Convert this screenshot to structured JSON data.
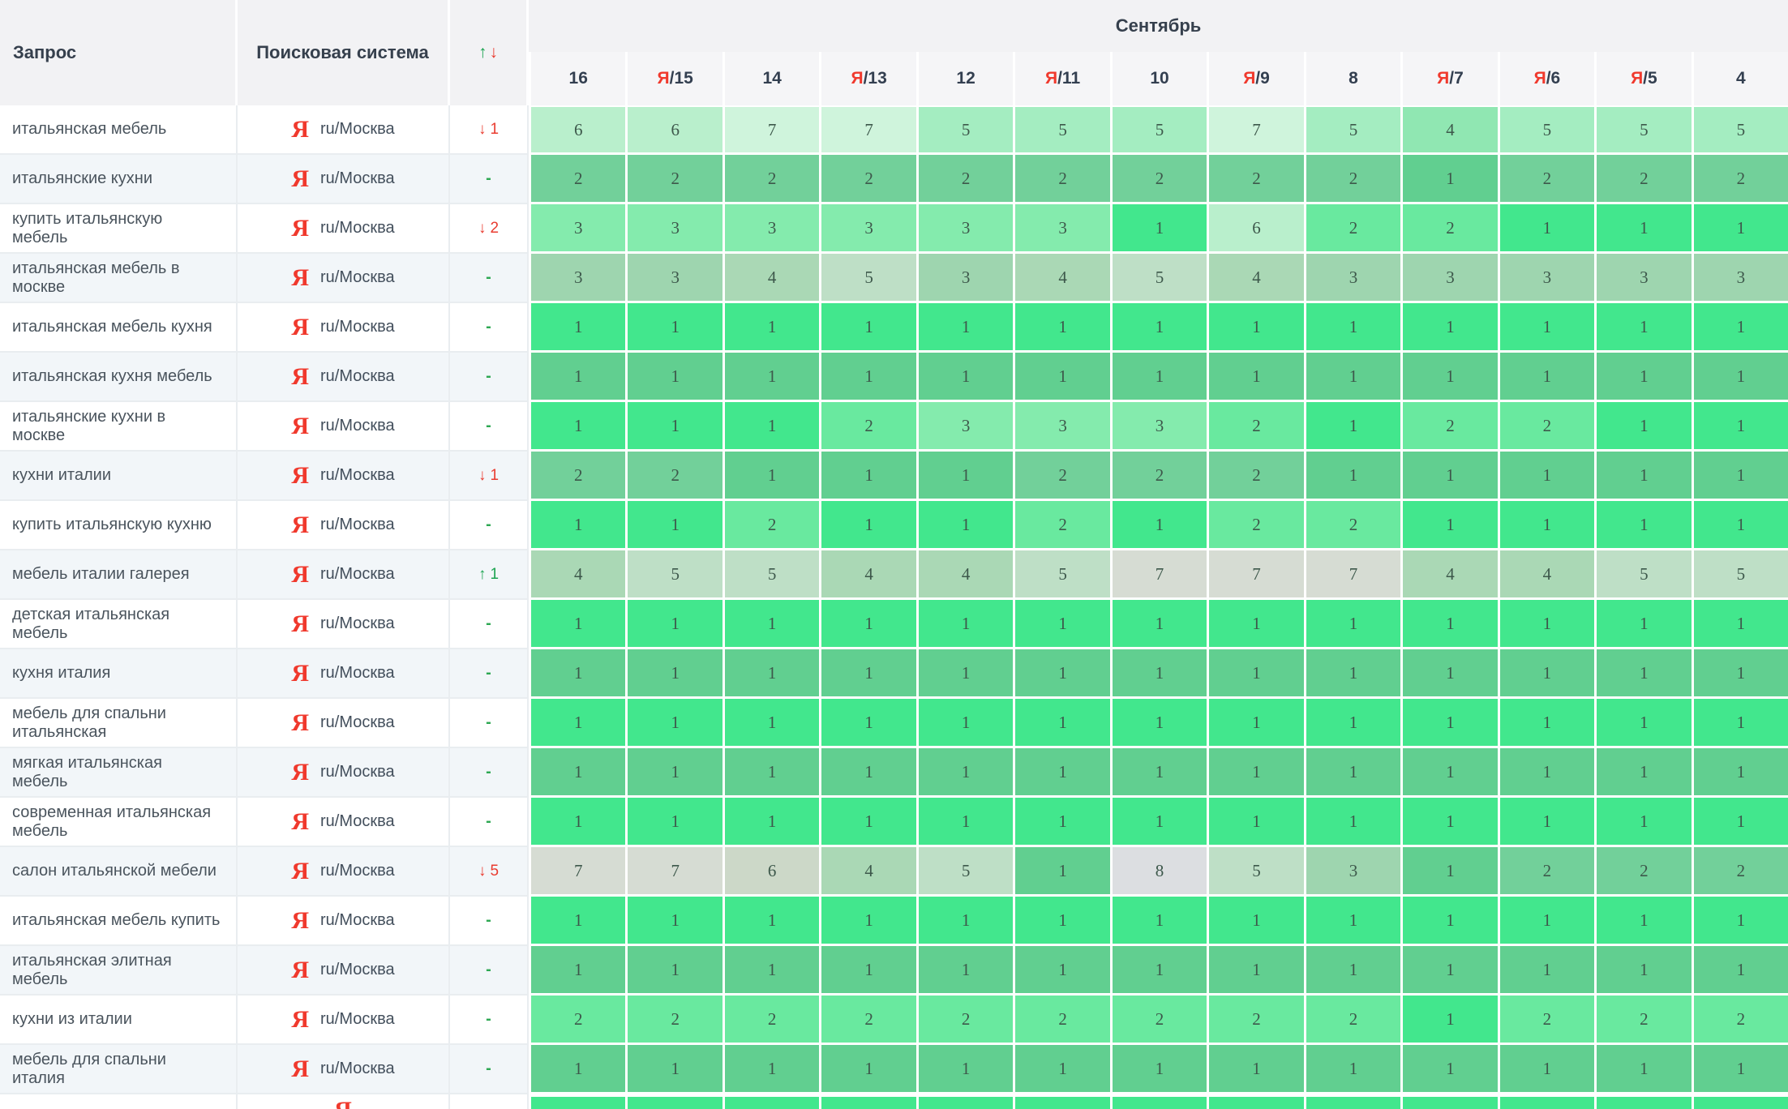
{
  "header": {
    "query_col": "Запрос",
    "engine_col": "Поисковая система",
    "change_up": "↑",
    "change_down": "↓",
    "month": "Сентябрь",
    "dates": [
      {
        "engine": "",
        "label": "16"
      },
      {
        "engine": "Я",
        "label": "/15"
      },
      {
        "engine": "",
        "label": "14"
      },
      {
        "engine": "Я",
        "label": "/13"
      },
      {
        "engine": "",
        "label": "12"
      },
      {
        "engine": "Я",
        "label": "/11"
      },
      {
        "engine": "",
        "label": "10"
      },
      {
        "engine": "Я",
        "label": "/9"
      },
      {
        "engine": "",
        "label": "8"
      },
      {
        "engine": "Я",
        "label": "/7"
      },
      {
        "engine": "Я",
        "label": "/6"
      },
      {
        "engine": "Я",
        "label": "/5"
      },
      {
        "engine": "",
        "label": "4"
      }
    ]
  },
  "engine": {
    "icon": "Я",
    "label": "ru/Москва"
  },
  "palette": {
    "v1": "#42e78d",
    "v2": "#69e99f",
    "v3": "#84ebad",
    "v4": "#90e7b2",
    "v5": "#a4edc1",
    "v6": "#b9efcc",
    "v7": "#cff4dc",
    "m1": "#61cf90",
    "m2": "#72d09a",
    "m3": "#9ed5af",
    "m4": "#aad8b5",
    "m5": "#bedfc6",
    "m6": "#ccd8c8",
    "m7": "#d6dcd3",
    "m8": "#dcdee1"
  },
  "change_colors": {
    "up": "#1ca351",
    "down": "#e93c30",
    "none": "#2ea853"
  },
  "rows": [
    {
      "query": "итальянская мебель",
      "change": {
        "dir": "down",
        "value": "1"
      },
      "values": [
        6,
        6,
        7,
        7,
        5,
        5,
        5,
        7,
        5,
        4,
        5,
        5,
        5
      ],
      "colors": [
        "v6",
        "v6",
        "v7",
        "v7",
        "v5",
        "v5",
        "v5",
        "v7",
        "v5",
        "v4",
        "v5",
        "v5",
        "v5"
      ]
    },
    {
      "query": "итальянские кухни",
      "change": {
        "dir": "none",
        "value": "-"
      },
      "values": [
        2,
        2,
        2,
        2,
        2,
        2,
        2,
        2,
        2,
        1,
        2,
        2,
        2
      ],
      "colors": [
        "m2",
        "m2",
        "m2",
        "m2",
        "m2",
        "m2",
        "m2",
        "m2",
        "m2",
        "m1",
        "m2",
        "m2",
        "m2"
      ]
    },
    {
      "query": "купить итальянскую мебель",
      "change": {
        "dir": "down",
        "value": "2"
      },
      "values": [
        3,
        3,
        3,
        3,
        3,
        3,
        1,
        6,
        2,
        2,
        1,
        1,
        1
      ],
      "colors": [
        "v3",
        "v3",
        "v3",
        "v3",
        "v3",
        "v3",
        "v1",
        "v6",
        "v2",
        "v2",
        "v1",
        "v1",
        "v1"
      ]
    },
    {
      "query": "итальянская мебель в москве",
      "change": {
        "dir": "none",
        "value": "-"
      },
      "values": [
        3,
        3,
        4,
        5,
        3,
        4,
        5,
        4,
        3,
        3,
        3,
        3,
        3
      ],
      "colors": [
        "m3",
        "m3",
        "m4",
        "m5",
        "m3",
        "m4",
        "m5",
        "m4",
        "m3",
        "m3",
        "m3",
        "m3",
        "m3"
      ]
    },
    {
      "query": "итальянская мебель кухня",
      "change": {
        "dir": "none",
        "value": "-"
      },
      "values": [
        1,
        1,
        1,
        1,
        1,
        1,
        1,
        1,
        1,
        1,
        1,
        1,
        1
      ],
      "colors": [
        "v1",
        "v1",
        "v1",
        "v1",
        "v1",
        "v1",
        "v1",
        "v1",
        "v1",
        "v1",
        "v1",
        "v1",
        "v1"
      ]
    },
    {
      "query": "итальянская кухня мебель",
      "change": {
        "dir": "none",
        "value": "-"
      },
      "values": [
        1,
        1,
        1,
        1,
        1,
        1,
        1,
        1,
        1,
        1,
        1,
        1,
        1
      ],
      "colors": [
        "m1",
        "m1",
        "m1",
        "m1",
        "m1",
        "m1",
        "m1",
        "m1",
        "m1",
        "m1",
        "m1",
        "m1",
        "m1"
      ]
    },
    {
      "query": "итальянские кухни в москве",
      "change": {
        "dir": "none",
        "value": "-"
      },
      "values": [
        1,
        1,
        1,
        2,
        3,
        3,
        3,
        2,
        1,
        2,
        2,
        1,
        1
      ],
      "colors": [
        "v1",
        "v1",
        "v1",
        "v2",
        "v3",
        "v3",
        "v3",
        "v2",
        "v1",
        "v2",
        "v2",
        "v1",
        "v1"
      ]
    },
    {
      "query": "кухни италии",
      "change": {
        "dir": "down",
        "value": "1"
      },
      "values": [
        2,
        2,
        1,
        1,
        1,
        2,
        2,
        2,
        1,
        1,
        1,
        1,
        1
      ],
      "colors": [
        "m2",
        "m2",
        "m1",
        "m1",
        "m1",
        "m2",
        "m2",
        "m2",
        "m1",
        "m1",
        "m1",
        "m1",
        "m1"
      ]
    },
    {
      "query": "купить итальянскую кухню",
      "change": {
        "dir": "none",
        "value": "-"
      },
      "values": [
        1,
        1,
        2,
        1,
        1,
        2,
        1,
        2,
        2,
        1,
        1,
        1,
        1
      ],
      "colors": [
        "v1",
        "v1",
        "v2",
        "v1",
        "v1",
        "v2",
        "v1",
        "v2",
        "v2",
        "v1",
        "v1",
        "v1",
        "v1"
      ]
    },
    {
      "query": "мебель италии галерея",
      "change": {
        "dir": "up",
        "value": "1"
      },
      "values": [
        4,
        5,
        5,
        4,
        4,
        5,
        7,
        7,
        7,
        4,
        4,
        5,
        5
      ],
      "colors": [
        "m4",
        "m5",
        "m5",
        "m4",
        "m4",
        "m5",
        "m7",
        "m7",
        "m7",
        "m4",
        "m4",
        "m5",
        "m5"
      ]
    },
    {
      "query": "детская итальянская мебель",
      "change": {
        "dir": "none",
        "value": "-"
      },
      "values": [
        1,
        1,
        1,
        1,
        1,
        1,
        1,
        1,
        1,
        1,
        1,
        1,
        1
      ],
      "colors": [
        "v1",
        "v1",
        "v1",
        "v1",
        "v1",
        "v1",
        "v1",
        "v1",
        "v1",
        "v1",
        "v1",
        "v1",
        "v1"
      ]
    },
    {
      "query": "кухня италия",
      "change": {
        "dir": "none",
        "value": "-"
      },
      "values": [
        1,
        1,
        1,
        1,
        1,
        1,
        1,
        1,
        1,
        1,
        1,
        1,
        1
      ],
      "colors": [
        "m1",
        "m1",
        "m1",
        "m1",
        "m1",
        "m1",
        "m1",
        "m1",
        "m1",
        "m1",
        "m1",
        "m1",
        "m1"
      ]
    },
    {
      "query": "мебель для спальни итальянская",
      "change": {
        "dir": "none",
        "value": "-"
      },
      "values": [
        1,
        1,
        1,
        1,
        1,
        1,
        1,
        1,
        1,
        1,
        1,
        1,
        1
      ],
      "colors": [
        "v1",
        "v1",
        "v1",
        "v1",
        "v1",
        "v1",
        "v1",
        "v1",
        "v1",
        "v1",
        "v1",
        "v1",
        "v1"
      ]
    },
    {
      "query": "мягкая итальянская мебель",
      "change": {
        "dir": "none",
        "value": "-"
      },
      "values": [
        1,
        1,
        1,
        1,
        1,
        1,
        1,
        1,
        1,
        1,
        1,
        1,
        1
      ],
      "colors": [
        "m1",
        "m1",
        "m1",
        "m1",
        "m1",
        "m1",
        "m1",
        "m1",
        "m1",
        "m1",
        "m1",
        "m1",
        "m1"
      ]
    },
    {
      "query": "современная итальянская мебель",
      "change": {
        "dir": "none",
        "value": "-"
      },
      "values": [
        1,
        1,
        1,
        1,
        1,
        1,
        1,
        1,
        1,
        1,
        1,
        1,
        1
      ],
      "colors": [
        "v1",
        "v1",
        "v1",
        "v1",
        "v1",
        "v1",
        "v1",
        "v1",
        "v1",
        "v1",
        "v1",
        "v1",
        "v1"
      ]
    },
    {
      "query": "салон итальянской мебели",
      "change": {
        "dir": "down",
        "value": "5"
      },
      "values": [
        7,
        7,
        6,
        4,
        5,
        1,
        8,
        5,
        3,
        1,
        2,
        2,
        2
      ],
      "colors": [
        "m7",
        "m7",
        "m6",
        "m4",
        "m5",
        "m1",
        "m8",
        "m5",
        "m3",
        "m1",
        "m2",
        "m2",
        "m2"
      ]
    },
    {
      "query": "итальянская мебель купить",
      "change": {
        "dir": "none",
        "value": "-"
      },
      "values": [
        1,
        1,
        1,
        1,
        1,
        1,
        1,
        1,
        1,
        1,
        1,
        1,
        1
      ],
      "colors": [
        "v1",
        "v1",
        "v1",
        "v1",
        "v1",
        "v1",
        "v1",
        "v1",
        "v1",
        "v1",
        "v1",
        "v1",
        "v1"
      ]
    },
    {
      "query": "итальянская элитная мебель",
      "change": {
        "dir": "none",
        "value": "-"
      },
      "values": [
        1,
        1,
        1,
        1,
        1,
        1,
        1,
        1,
        1,
        1,
        1,
        1,
        1
      ],
      "colors": [
        "m1",
        "m1",
        "m1",
        "m1",
        "m1",
        "m1",
        "m1",
        "m1",
        "m1",
        "m1",
        "m1",
        "m1",
        "m1"
      ]
    },
    {
      "query": "кухни из италии",
      "change": {
        "dir": "none",
        "value": "-"
      },
      "values": [
        2,
        2,
        2,
        2,
        2,
        2,
        2,
        2,
        2,
        1,
        2,
        2,
        2
      ],
      "colors": [
        "v2",
        "v2",
        "v2",
        "v2",
        "v2",
        "v2",
        "v2",
        "v2",
        "v2",
        "v1",
        "v2",
        "v2",
        "v2"
      ]
    },
    {
      "query": "мебель для спальни италия",
      "change": {
        "dir": "none",
        "value": "-"
      },
      "values": [
        1,
        1,
        1,
        1,
        1,
        1,
        1,
        1,
        1,
        1,
        1,
        1,
        1
      ],
      "colors": [
        "m1",
        "m1",
        "m1",
        "m1",
        "m1",
        "m1",
        "m1",
        "m1",
        "m1",
        "m1",
        "m1",
        "m1",
        "m1"
      ]
    }
  ],
  "partial_row": {
    "color": "v1",
    "cell_count": 13
  }
}
